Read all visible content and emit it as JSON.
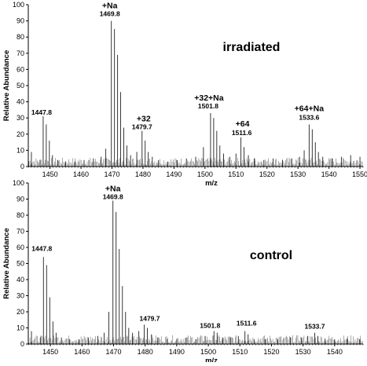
{
  "chart_data": [
    {
      "type": "line",
      "condition_label": "irradiated",
      "xlabel": "m/z",
      "ylabel": "Relative Abundance",
      "xlim": [
        1443,
        1551
      ],
      "ylim": [
        0,
        100
      ],
      "x_ticks": [
        1450,
        1460,
        1470,
        1480,
        1490,
        1500,
        1510,
        1520,
        1530,
        1540,
        1550
      ],
      "y_ticks": [
        0,
        10,
        20,
        30,
        40,
        50,
        60,
        70,
        80,
        90,
        100
      ],
      "series": [
        {
          "points": [
            [
              1444.0,
              9
            ],
            [
              1446.8,
              4
            ],
            [
              1447.8,
              31
            ],
            [
              1448.8,
              26
            ],
            [
              1449.8,
              16
            ],
            [
              1450.8,
              7
            ],
            [
              1452.5,
              4
            ],
            [
              1455.0,
              3
            ],
            [
              1458.0,
              3
            ],
            [
              1461.0,
              4
            ],
            [
              1464.0,
              5
            ],
            [
              1466.5,
              6
            ],
            [
              1468.0,
              11
            ],
            [
              1469.8,
              90
            ],
            [
              1470.8,
              85
            ],
            [
              1471.8,
              69
            ],
            [
              1472.8,
              46
            ],
            [
              1473.8,
              24
            ],
            [
              1474.8,
              13
            ],
            [
              1476.0,
              7
            ],
            [
              1478.0,
              9
            ],
            [
              1479.7,
              22
            ],
            [
              1480.7,
              16
            ],
            [
              1481.7,
              9
            ],
            [
              1483.0,
              6
            ],
            [
              1485.0,
              4
            ],
            [
              1488.0,
              3
            ],
            [
              1491.0,
              4
            ],
            [
              1494.0,
              5
            ],
            [
              1497.0,
              6
            ],
            [
              1499.5,
              12
            ],
            [
              1501.8,
              33
            ],
            [
              1502.8,
              30
            ],
            [
              1503.8,
              22
            ],
            [
              1504.8,
              13
            ],
            [
              1506.0,
              8
            ],
            [
              1508.0,
              6
            ],
            [
              1510.0,
              8
            ],
            [
              1511.6,
              18
            ],
            [
              1512.6,
              12
            ],
            [
              1514.0,
              7
            ],
            [
              1516.0,
              5
            ],
            [
              1519.0,
              4
            ],
            [
              1522.0,
              5
            ],
            [
              1525.0,
              4
            ],
            [
              1528.0,
              5
            ],
            [
              1530.5,
              6
            ],
            [
              1532.0,
              10
            ],
            [
              1533.6,
              26
            ],
            [
              1534.6,
              23
            ],
            [
              1535.6,
              15
            ],
            [
              1536.6,
              9
            ],
            [
              1538.0,
              6
            ],
            [
              1541.0,
              5
            ],
            [
              1544.0,
              6
            ],
            [
              1547.0,
              7
            ],
            [
              1550.0,
              6
            ]
          ]
        }
      ],
      "annotations": [
        {
          "x": 1469.8,
          "y": 90,
          "ion": "+Na",
          "mz": "1469.8"
        },
        {
          "x": 1447.8,
          "y": 31,
          "ion": "",
          "mz": "1447.8"
        },
        {
          "x": 1479.7,
          "y": 22,
          "ion": "+32",
          "mz": "1479.7"
        },
        {
          "x": 1501.8,
          "y": 33,
          "ion": "+32+Na",
          "mz": "1501.8"
        },
        {
          "x": 1511.6,
          "y": 18,
          "ion": "+64",
          "mz": "1511.6"
        },
        {
          "x": 1533.6,
          "y": 26,
          "ion": "+64+Na",
          "mz": "1533.6"
        }
      ]
    },
    {
      "type": "line",
      "condition_label": "control",
      "xlabel": "m/z",
      "ylabel": "Relative Abundance",
      "xlim": [
        1443,
        1549
      ],
      "ylim": [
        0,
        100
      ],
      "x_ticks": [
        1450,
        1460,
        1470,
        1480,
        1490,
        1500,
        1510,
        1520,
        1530,
        1540
      ],
      "y_ticks": [
        0,
        10,
        20,
        30,
        40,
        50,
        60,
        70,
        80,
        90,
        100
      ],
      "series": [
        {
          "points": [
            [
              1444.0,
              8
            ],
            [
              1446.8,
              4
            ],
            [
              1447.8,
              54
            ],
            [
              1448.8,
              49
            ],
            [
              1449.8,
              29
            ],
            [
              1450.8,
              14
            ],
            [
              1451.8,
              7
            ],
            [
              1453.5,
              4
            ],
            [
              1456.0,
              3
            ],
            [
              1459.0,
              3
            ],
            [
              1462.0,
              4
            ],
            [
              1465.0,
              5
            ],
            [
              1467.0,
              7
            ],
            [
              1468.5,
              20
            ],
            [
              1469.8,
              89
            ],
            [
              1470.8,
              82
            ],
            [
              1471.8,
              59
            ],
            [
              1472.8,
              36
            ],
            [
              1473.8,
              20
            ],
            [
              1474.8,
              10
            ],
            [
              1476.0,
              7
            ],
            [
              1478.0,
              8
            ],
            [
              1479.7,
              12
            ],
            [
              1480.7,
              10
            ],
            [
              1482.0,
              6
            ],
            [
              1484.0,
              4
            ],
            [
              1487.0,
              3
            ],
            [
              1490.0,
              3
            ],
            [
              1493.0,
              4
            ],
            [
              1496.0,
              3
            ],
            [
              1499.0,
              5
            ],
            [
              1501.8,
              8
            ],
            [
              1502.8,
              7
            ],
            [
              1504.5,
              4
            ],
            [
              1507.0,
              4
            ],
            [
              1509.5,
              5
            ],
            [
              1511.6,
              8
            ],
            [
              1512.6,
              6
            ],
            [
              1514.5,
              3
            ],
            [
              1518.0,
              3
            ],
            [
              1522.0,
              3
            ],
            [
              1526.0,
              4
            ],
            [
              1529.5,
              4
            ],
            [
              1531.5,
              5
            ],
            [
              1533.7,
              7
            ],
            [
              1534.7,
              5
            ],
            [
              1537.0,
              3
            ],
            [
              1540.0,
              3
            ],
            [
              1544.0,
              3
            ],
            [
              1548.0,
              3
            ]
          ]
        }
      ],
      "annotations": [
        {
          "x": 1469.8,
          "y": 89,
          "ion": "+Na",
          "mz": "1469.8"
        },
        {
          "x": 1447.8,
          "y": 54,
          "ion": "",
          "mz": "1447.8"
        },
        {
          "x": 1479.7,
          "y": 12,
          "ion": "",
          "mz": "1479.7"
        },
        {
          "x": 1501.8,
          "y": 8,
          "ion": "",
          "mz": "1501.8"
        },
        {
          "x": 1511.6,
          "y": 8,
          "ion": "",
          "mz": "1511.6"
        },
        {
          "x": 1533.7,
          "y": 7,
          "ion": "",
          "mz": "1533.7"
        }
      ]
    }
  ]
}
